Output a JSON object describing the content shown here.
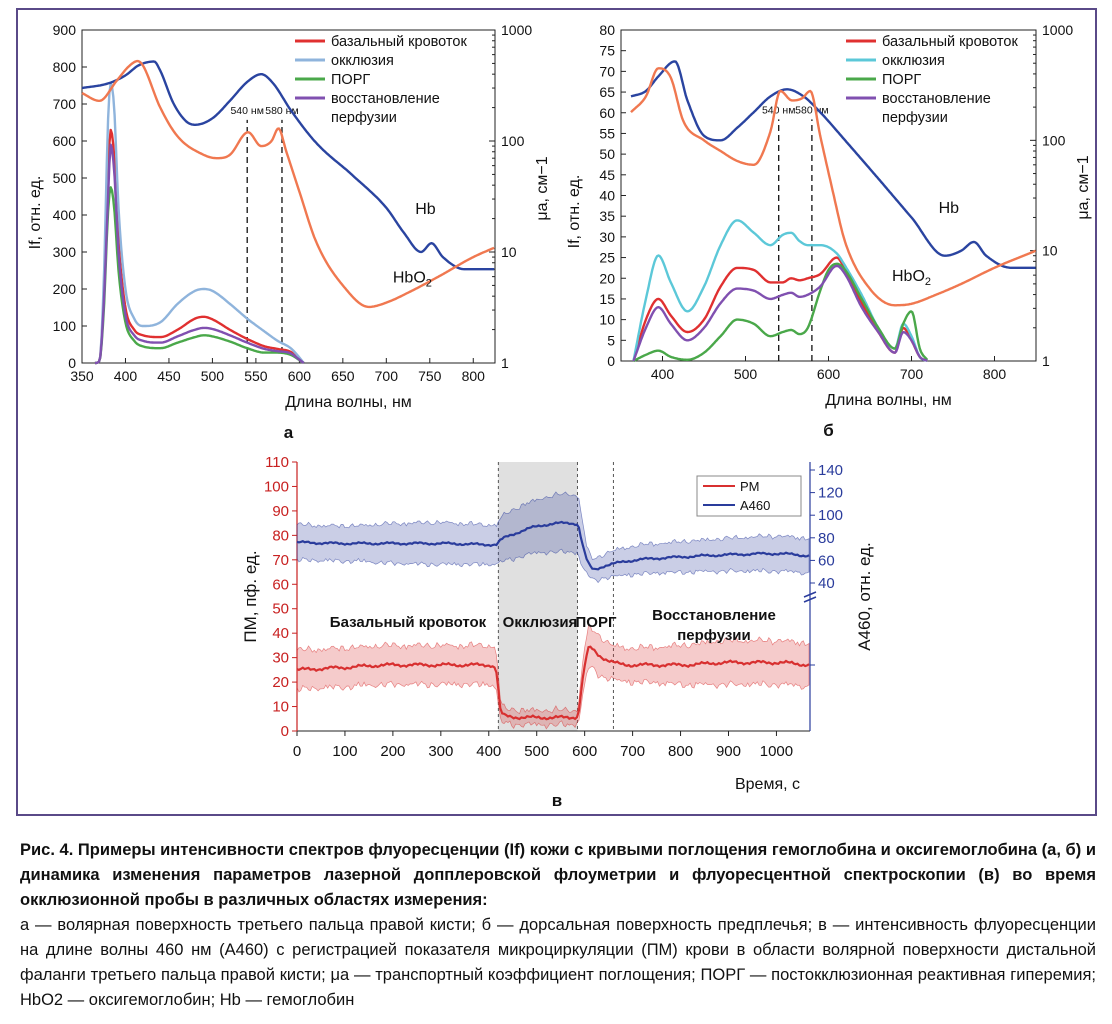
{
  "figure": {
    "caption_title": "Рис. 4. Примеры интенсивности спектров флуоресценции (If) кожи с кривыми поглощения гемоглобина и оксигемоглобина (а, б) и динамика изменения параметров лазерной допплеровской флоуметрии и флуоресцентной спектроскопии (в) во время окклюзионной пробы в различных областях измерения:",
    "caption_body": "а — волярная поверхность третьего пальца правой кисти; б — дорсальная поверхность предплечья; в — интенсивность флуоресценции на длине волны 460 нм (A460) с регистрацией показателя микроциркуляции (ПМ) крови в области волярной поверхности дистальной фаланги третьего пальца правой кисти; μa — транспортный коэффициент поглощения; ПОРГ — постокклюзионная реактивная гиперемия; HbO2 — оксигемоглобин; Hb — гемоглобин"
  },
  "colors": {
    "frame": "#5a4a88",
    "basal": "#e03030",
    "occlusion_a": "#8fb4dc",
    "occlusion_b": "#5cc8d8",
    "porg": "#4aa84a",
    "recovery": "#8050b0",
    "hb": "#2a44a0",
    "hbo2": "#f07850",
    "pm": "#d83030",
    "a460": "#2a3c9c"
  },
  "chart_data": [
    {
      "panel": "а",
      "type": "line",
      "xlabel": "Длина волны, нм",
      "ylabel": "If, отн. ед.",
      "y2label": "μa, см−1",
      "xlim": [
        350,
        825
      ],
      "ylim": [
        0,
        900
      ],
      "y2lim": [
        1,
        1000
      ],
      "y2scale": "log",
      "xticks": [
        "350",
        "400",
        "450",
        "500",
        "550",
        "600",
        "650",
        "700",
        "750",
        "800"
      ],
      "yticks": [
        "0",
        "100",
        "200",
        "300",
        "400",
        "500",
        "600",
        "700",
        "800",
        "900"
      ],
      "y2ticks": [
        "1",
        "10",
        "100",
        "1000"
      ],
      "vlines": [
        {
          "x": 540,
          "label": "540 нм"
        },
        {
          "x": 580,
          "label": "580 нм"
        }
      ],
      "annotations": [
        {
          "text": "Hb",
          "x": 745,
          "y": 22
        },
        {
          "text": "HbO2",
          "x": 730,
          "y": 5.3
        }
      ],
      "legend": [
        "базальный кровоток",
        "окклюзия",
        "ПОРГ",
        "восстановление",
        "перфузии"
      ],
      "legend_position": "top-right",
      "series": [
        {
          "name": "базальный кровоток",
          "axis": "left",
          "x": [
            365,
            370,
            375,
            380,
            383,
            387,
            392,
            400,
            410,
            420,
            440,
            460,
            480,
            490,
            500,
            520,
            540,
            560,
            575,
            590,
            600,
            605
          ],
          "y": [
            0,
            5,
            180,
            520,
            630,
            560,
            330,
            150,
            90,
            75,
            70,
            90,
            120,
            125,
            118,
            90,
            65,
            45,
            38,
            30,
            10,
            0
          ]
        },
        {
          "name": "окклюзия",
          "axis": "left",
          "x": [
            365,
            370,
            375,
            380,
            383,
            387,
            392,
            400,
            410,
            420,
            440,
            460,
            480,
            490,
            500,
            520,
            540,
            560,
            575,
            590,
            600,
            605
          ],
          "y": [
            0,
            5,
            220,
            660,
            755,
            690,
            420,
            200,
            120,
            100,
            110,
            160,
            195,
            200,
            195,
            160,
            120,
            85,
            60,
            40,
            15,
            0
          ]
        },
        {
          "name": "ПОРГ",
          "axis": "left",
          "x": [
            365,
            370,
            375,
            380,
            383,
            387,
            392,
            400,
            410,
            420,
            440,
            460,
            480,
            490,
            500,
            520,
            540,
            560,
            575,
            590,
            600,
            605
          ],
          "y": [
            0,
            5,
            140,
            410,
            475,
            420,
            250,
            110,
            60,
            45,
            40,
            55,
            70,
            75,
            72,
            58,
            40,
            28,
            28,
            22,
            8,
            0
          ]
        },
        {
          "name": "восстановление перфузии",
          "axis": "left",
          "x": [
            365,
            370,
            375,
            380,
            383,
            387,
            392,
            400,
            410,
            420,
            440,
            460,
            480,
            490,
            500,
            520,
            540,
            560,
            575,
            590,
            600,
            605
          ],
          "y": [
            0,
            5,
            160,
            450,
            590,
            520,
            300,
            130,
            75,
            60,
            55,
            72,
            90,
            95,
            92,
            75,
            55,
            38,
            32,
            26,
            9,
            0
          ]
        },
        {
          "name": "Hb",
          "axis": "right",
          "x": [
            350,
            380,
            400,
            415,
            433,
            440,
            455,
            470,
            480,
            500,
            520,
            540,
            556,
            570,
            590,
            620,
            660,
            700,
            720,
            740,
            752,
            765,
            790,
            825
          ],
          "y": [
            300,
            330,
            390,
            480,
            520,
            430,
            220,
            150,
            140,
            160,
            230,
            340,
            400,
            330,
            190,
            95,
            50,
            25,
            15,
            10,
            12,
            9,
            7,
            7
          ]
        },
        {
          "name": "HbO2",
          "axis": "right",
          "x": [
            350,
            370,
            390,
            405,
            414,
            420,
            440,
            460,
            490,
            505,
            520,
            541,
            556,
            568,
            576,
            585,
            600,
            620,
            650,
            680,
            700,
            730,
            760,
            800,
            825
          ],
          "y": [
            270,
            230,
            350,
            480,
            525,
            480,
            200,
            110,
            75,
            70,
            75,
            120,
            90,
            100,
            130,
            80,
            35,
            12,
            5,
            3.2,
            3.5,
            4.5,
            6,
            9,
            11
          ]
        }
      ]
    },
    {
      "panel": "б",
      "type": "line",
      "xlabel": "Длина волны, нм",
      "ylabel": "If, отн. ед.",
      "y2label": "μa, см−1",
      "xlim": [
        350,
        850
      ],
      "ylim": [
        0,
        80
      ],
      "y2lim": [
        1,
        1000
      ],
      "y2scale": "log",
      "xticks": [
        "400",
        "500",
        "600",
        "700",
        "800"
      ],
      "yticks": [
        "0",
        "5",
        "10",
        "15",
        "20",
        "25",
        "30",
        "35",
        "40",
        "45",
        "50",
        "55",
        "60",
        "65",
        "70",
        "75",
        "80"
      ],
      "y2ticks": [
        "1",
        "10",
        "100",
        "1000"
      ],
      "vlines": [
        {
          "x": 540,
          "label": "540 нм"
        },
        {
          "x": 580,
          "label": "580 нм"
        }
      ],
      "annotations": [
        {
          "text": "Hb",
          "x": 745,
          "y": 22
        },
        {
          "text": "HbO2",
          "x": 700,
          "y": 5.3
        }
      ],
      "legend": [
        "базальный кровоток",
        "окклюзия",
        "ПОРГ",
        "восстановление",
        "перфузии"
      ],
      "legend_position": "top-right",
      "series": [
        {
          "name": "базальный кровоток",
          "axis": "left",
          "x": [
            365,
            380,
            395,
            410,
            430,
            450,
            470,
            490,
            510,
            530,
            545,
            555,
            565,
            575,
            590,
            610,
            620,
            640,
            660,
            680,
            690,
            700,
            710,
            720
          ],
          "y": [
            0,
            10,
            15,
            11,
            7,
            10,
            18,
            22.5,
            22,
            19,
            19,
            20,
            19.5,
            20,
            21,
            25,
            22,
            14,
            7,
            2,
            8,
            5,
            1,
            0
          ]
        },
        {
          "name": "окклюзия",
          "axis": "left",
          "x": [
            365,
            380,
            395,
            410,
            430,
            450,
            470,
            490,
            510,
            530,
            545,
            555,
            565,
            575,
            590,
            610,
            620,
            640,
            660,
            680,
            690,
            700,
            710,
            720
          ],
          "y": [
            0,
            15,
            25.5,
            19,
            12,
            18,
            28,
            34,
            31,
            28,
            30.5,
            31,
            29,
            28,
            28,
            26,
            23,
            16,
            8,
            3,
            9,
            6,
            1,
            0
          ]
        },
        {
          "name": "ПОРГ",
          "axis": "left",
          "x": [
            365,
            380,
            395,
            410,
            430,
            450,
            470,
            490,
            510,
            530,
            545,
            555,
            565,
            575,
            590,
            600,
            610,
            620,
            640,
            660,
            680,
            690,
            700,
            710,
            720
          ],
          "y": [
            0,
            1.5,
            2.5,
            1,
            0.3,
            2,
            6,
            10,
            9,
            6,
            7,
            7.5,
            6.5,
            8,
            17,
            22,
            23.5,
            22,
            15,
            8,
            3,
            9,
            12,
            3,
            0
          ]
        },
        {
          "name": "восстановление перфузии",
          "axis": "left",
          "x": [
            365,
            380,
            395,
            410,
            430,
            450,
            470,
            490,
            510,
            530,
            545,
            555,
            565,
            575,
            590,
            610,
            620,
            640,
            660,
            680,
            690,
            700,
            710,
            720
          ],
          "y": [
            0,
            8,
            13,
            9,
            5,
            8,
            14,
            17.5,
            17,
            15,
            16,
            16.5,
            15.5,
            16,
            18,
            23,
            21,
            13,
            7,
            2,
            7,
            5,
            1,
            0
          ]
        },
        {
          "name": "Hb",
          "axis": "right",
          "x": [
            362,
            380,
            395,
            415,
            430,
            450,
            470,
            490,
            510,
            530,
            550,
            570,
            590,
            620,
            660,
            700,
            740,
            760,
            775,
            790,
            820,
            850
          ],
          "y": [
            250,
            280,
            380,
            520,
            230,
            110,
            100,
            130,
            180,
            250,
            290,
            250,
            180,
            100,
            45,
            20,
            9,
            10,
            12,
            9,
            7,
            7
          ]
        },
        {
          "name": "HbO2",
          "axis": "right",
          "x": [
            362,
            380,
            395,
            410,
            425,
            450,
            470,
            490,
            510,
            530,
            542,
            556,
            568,
            578,
            590,
            605,
            620,
            650,
            680,
            700,
            730,
            760,
            800,
            850
          ],
          "y": [
            180,
            250,
            450,
            370,
            150,
            100,
            80,
            65,
            60,
            120,
            280,
            230,
            240,
            280,
            110,
            35,
            12,
            4.5,
            3.2,
            3.3,
            4,
            5,
            7,
            10
          ]
        }
      ]
    },
    {
      "panel": "в",
      "type": "line",
      "xlabel": "Время, с",
      "ylabel": "ПМ, пф. ед.",
      "y2label": "A460, отн. ед.",
      "xlim": [
        0,
        1070
      ],
      "ylim": [
        0,
        110
      ],
      "y2lim": [
        20,
        140
      ],
      "xticks": [
        "0",
        "100",
        "200",
        "300",
        "400",
        "500",
        "600",
        "700",
        "800",
        "900",
        "1000"
      ],
      "yticks": [
        "0",
        "10",
        "20",
        "30",
        "40",
        "50",
        "60",
        "70",
        "80",
        "90",
        "100",
        "110"
      ],
      "y2ticks": [
        "40",
        "60",
        "80",
        "100",
        "120",
        "140"
      ],
      "phase_bounds": [
        420,
        585,
        660
      ],
      "shaded_region": [
        420,
        585
      ],
      "phases": [
        "Базальный кровоток",
        "Окклюзия",
        "ПОРГ",
        "Восстановление",
        "перфузии"
      ],
      "legend": [
        "PM",
        "A460"
      ],
      "legend_position": "top-right",
      "series": [
        {
          "name": "PM",
          "axis": "left",
          "x": [
            0,
            100,
            200,
            300,
            400,
            415,
            425,
            440,
            500,
            560,
            585,
            595,
            610,
            630,
            660,
            700,
            800,
            900,
            1000,
            1070
          ],
          "y": [
            25,
            26,
            27,
            27,
            27,
            25,
            8,
            6,
            5.5,
            5.5,
            6,
            20,
            34,
            31,
            28,
            27,
            27,
            28,
            28,
            27
          ],
          "band": [
            7,
            7,
            7,
            7,
            7,
            7,
            3,
            2,
            2,
            2,
            2,
            6,
            7,
            7,
            6,
            6,
            7,
            8,
            8,
            8
          ]
        },
        {
          "name": "A460",
          "axis": "right",
          "x": [
            0,
            100,
            200,
            300,
            400,
            415,
            425,
            450,
            500,
            560,
            585,
            595,
            605,
            620,
            640,
            660,
            700,
            800,
            900,
            1000,
            1070
          ],
          "y": [
            76,
            75,
            75,
            75,
            74,
            74,
            78,
            83,
            90,
            93,
            92,
            75,
            60,
            52,
            55,
            57,
            60,
            63,
            65,
            66,
            64
          ],
          "band": [
            14,
            14,
            16,
            17,
            16,
            16,
            18,
            20,
            22,
            24,
            24,
            20,
            10,
            8,
            9,
            10,
            11,
            12,
            13,
            14,
            14
          ]
        }
      ]
    }
  ]
}
